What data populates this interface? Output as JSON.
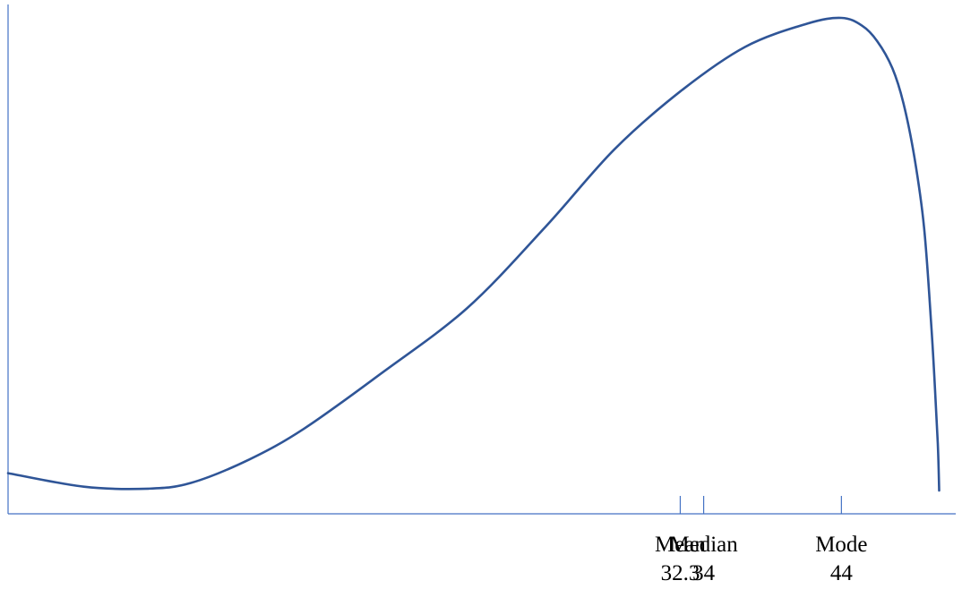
{
  "chart_data": {
    "type": "line",
    "title": "",
    "xlabel": "",
    "ylabel": "",
    "grid": false,
    "xlim": [
      -16.5,
      52.3
    ],
    "ylim": [
      -0.6,
      12.2
    ],
    "series": [
      {
        "color": "#2F5597",
        "x": [
          -16.5,
          -11,
          -6.3,
          -3.2,
          1,
          5,
          10.5,
          16.8,
          22.5,
          27.5,
          32.3,
          37,
          41.5,
          44,
          45.5,
          46.6,
          47.7,
          48.5,
          49.3,
          50,
          50.5,
          50.8,
          51,
          51.1
        ],
        "y": [
          0.45,
          0.1,
          0.05,
          0.2,
          0.8,
          1.6,
          3.0,
          4.7,
          6.8,
          8.8,
          10.3,
          11.45,
          12.05,
          12.2,
          12.0,
          11.6,
          10.9,
          10.0,
          8.6,
          6.8,
          4.4,
          2.6,
          1.2,
          0.0
        ]
      }
    ],
    "markers": [
      {
        "label": "Mean",
        "value": 32.3,
        "value_label": "32.3"
      },
      {
        "label": "Median",
        "value": 34,
        "value_label": "34"
      },
      {
        "label": "Mode",
        "value": 44,
        "value_label": "44"
      }
    ],
    "colors": {
      "axis": "#4472C4",
      "curve": "#2F5597",
      "text": "#000000"
    }
  }
}
